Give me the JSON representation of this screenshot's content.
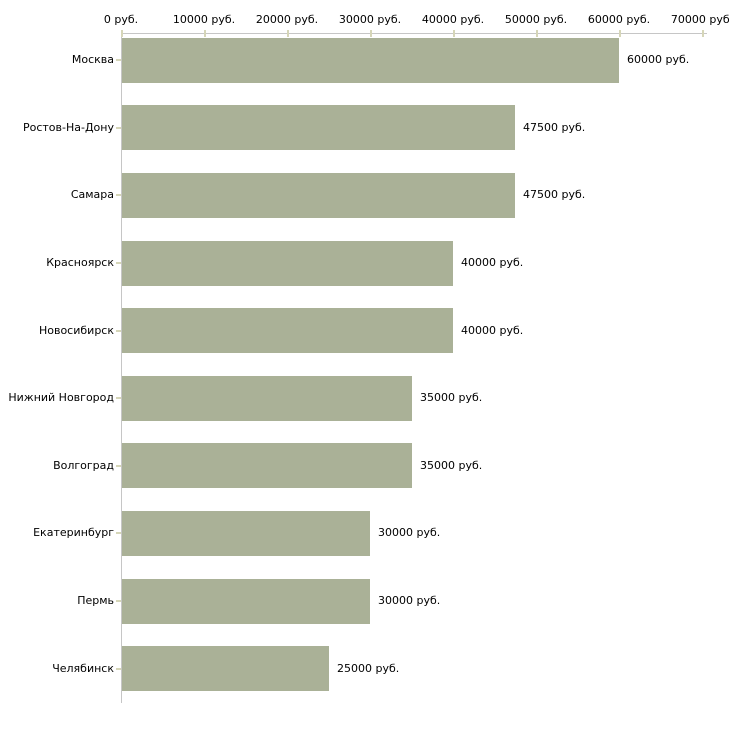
{
  "chart_data": {
    "type": "bar",
    "orientation": "horizontal",
    "title": "",
    "categories": [
      "Москва",
      "Ростов-На-Дону",
      "Самара",
      "Красноярск",
      "Новосибирск",
      "Нижний Новгород",
      "Волгоград",
      "Екатеринбург",
      "Пермь",
      "Челябинск"
    ],
    "values": [
      60000,
      47500,
      47500,
      40000,
      40000,
      35000,
      35000,
      30000,
      30000,
      25000
    ],
    "bar_labels": [
      "60000 руб.",
      "47500 руб.",
      "47500 руб.",
      "40000 руб.",
      "40000 руб.",
      "35000 руб.",
      "35000 руб.",
      "30000 руб.",
      "30000 руб.",
      "25000 руб."
    ],
    "x_axis": {
      "position": "top",
      "min": 0,
      "max": 70000,
      "tick_step": 10000,
      "tick_labels": [
        "0 руб.",
        "10000 руб.",
        "20000 руб.",
        "30000 руб.",
        "40000 руб.",
        "50000 руб.",
        "60000 руб.",
        "70000 руб."
      ]
    },
    "unit": "руб.",
    "grid": false,
    "legend": false,
    "colors": {
      "bar": "#aab197",
      "axis_line": "#c6c6c6",
      "tick_mark": "#d6d6b8",
      "label_text": "#000000",
      "background": "#ffffff"
    }
  }
}
